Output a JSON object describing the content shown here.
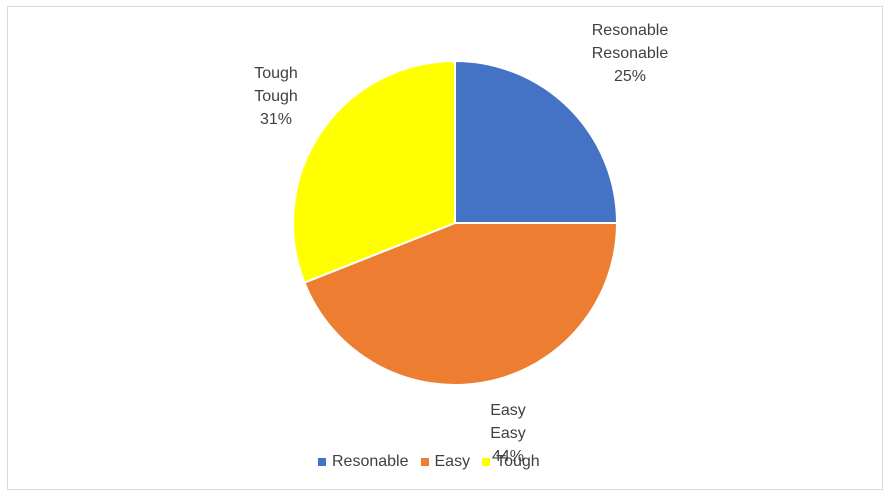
{
  "chart_data": {
    "type": "pie",
    "title": "",
    "categories": [
      "Resonable",
      "Easy",
      "Tough"
    ],
    "values": [
      25,
      44,
      31
    ],
    "unit": "%",
    "colors": [
      "#4472c4",
      "#ed7d31",
      "#ffff00"
    ],
    "legend_position": "bottom",
    "data_labels": [
      {
        "category": "Resonable",
        "series": "Resonable",
        "percent": "25%"
      },
      {
        "category": "Easy",
        "series": "Easy",
        "percent": "44%"
      },
      {
        "category": "Tough",
        "series": "Tough",
        "percent": "31%"
      }
    ]
  }
}
